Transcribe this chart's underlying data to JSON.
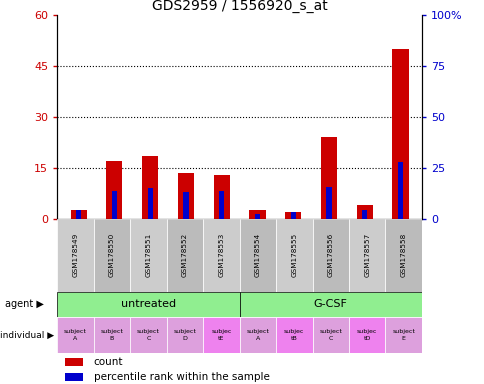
{
  "title": "GDS2959 / 1556920_s_at",
  "samples": [
    "GSM178549",
    "GSM178550",
    "GSM178551",
    "GSM178552",
    "GSM178553",
    "GSM178554",
    "GSM178555",
    "GSM178556",
    "GSM178557",
    "GSM178558"
  ],
  "count_values": [
    2.5,
    17.0,
    18.5,
    13.5,
    13.0,
    2.5,
    2.0,
    24.0,
    4.0,
    50.0
  ],
  "percentile_values": [
    4.5,
    13.5,
    15.0,
    13.0,
    13.5,
    2.5,
    3.5,
    15.5,
    4.5,
    28.0
  ],
  "ylim_left": [
    0,
    60
  ],
  "ylim_right": [
    0,
    100
  ],
  "yticks_left": [
    0,
    15,
    30,
    45,
    60
  ],
  "yticks_right": [
    0,
    25,
    50,
    75,
    100
  ],
  "ytick_labels_left": [
    "0",
    "15",
    "30",
    "45",
    "60"
  ],
  "ytick_labels_right": [
    "0",
    "25",
    "50",
    "75",
    "100%"
  ],
  "bar_color": "#CC0000",
  "percentile_color": "#0000CC",
  "grid_color": "black",
  "background_color": "#FFFFFF",
  "individual_labels": [
    "subject\nA",
    "subject\nB",
    "subject\nC",
    "subject\nD",
    "subjec\ntE",
    "subject\nA",
    "subjec\ntB",
    "subject\nC",
    "subjec\ntD",
    "subject\nE"
  ],
  "individual_colors": [
    "#DDA0DD",
    "#DDA0DD",
    "#DDA0DD",
    "#DDA0DD",
    "#EE82EE",
    "#DDA0DD",
    "#EE82EE",
    "#DDA0DD",
    "#EE82EE",
    "#DDA0DD"
  ]
}
